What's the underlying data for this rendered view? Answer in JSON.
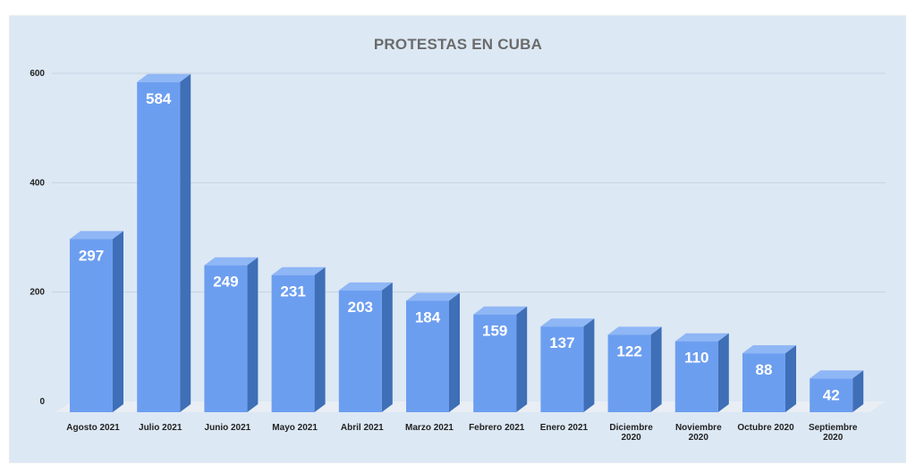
{
  "chart_data": {
    "type": "bar",
    "title": "PROTESTAS EN CUBA",
    "xlabel": "",
    "ylabel": "",
    "categories": [
      [
        "Agosto 2021"
      ],
      [
        "Julio 2021"
      ],
      [
        "Junio 2021"
      ],
      [
        "Mayo 2021"
      ],
      [
        "Abril 2021"
      ],
      [
        "Marzo 2021"
      ],
      [
        "Febrero 2021"
      ],
      [
        "Enero 2021"
      ],
      [
        "Diciembre",
        "2020"
      ],
      [
        "Noviembre",
        "2020"
      ],
      [
        "Octubre 2020"
      ],
      [
        "Septiembre",
        "2020"
      ]
    ],
    "values": [
      297,
      584,
      249,
      231,
      203,
      184,
      159,
      137,
      122,
      110,
      88,
      42
    ],
    "ylim": [
      0,
      600
    ],
    "yticks": [
      0,
      200,
      400,
      600
    ],
    "grid": true,
    "legend": "none",
    "colors": {
      "bar_front": "#6c9ef0",
      "bar_side": "#3e6fb7",
      "bar_top": "#8fb6f5",
      "floor": "#e9eef4",
      "grid": "#c4d3e3",
      "label": "#ffffff",
      "axis_text": "#222222"
    }
  }
}
